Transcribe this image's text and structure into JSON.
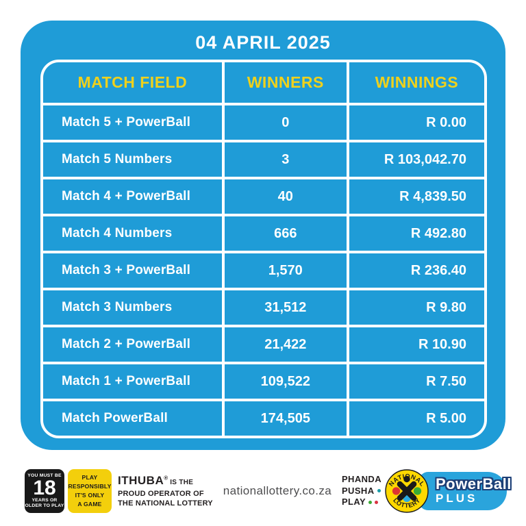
{
  "title": "04 APRIL 2025",
  "table": {
    "headers": [
      "MATCH FIELD",
      "WINNERS",
      "WINNINGS"
    ],
    "rows": [
      {
        "field": "Match 5 + PowerBall",
        "winners": "0",
        "winnings": "R 0.00"
      },
      {
        "field": "Match 5 Numbers",
        "winners": "3",
        "winnings": "R 103,042.70"
      },
      {
        "field": "Match 4 + PowerBall",
        "winners": "40",
        "winnings": "R 4,839.50"
      },
      {
        "field": "Match 4 Numbers",
        "winners": "666",
        "winnings": "R 492.80"
      },
      {
        "field": "Match 3 + PowerBall",
        "winners": "1,570",
        "winnings": "R 236.40"
      },
      {
        "field": "Match 3 Numbers",
        "winners": "31,512",
        "winnings": "R 9.80"
      },
      {
        "field": "Match 2 + PowerBall",
        "winners": "21,422",
        "winnings": "R 10.90"
      },
      {
        "field": "Match 1 + PowerBall",
        "winners": "109,522",
        "winnings": "R 7.50"
      },
      {
        "field": "Match PowerBall",
        "winners": "174,505",
        "winnings": "R 5.00"
      }
    ]
  },
  "footer": {
    "age_badge": {
      "top": "YOU MUST BE",
      "number": "18",
      "bottom": [
        "YEARS OR",
        "OLDER TO PLAY"
      ]
    },
    "responsibly_badge": [
      "PLAY",
      "RESPONSIBLY",
      "IT'S ONLY",
      "A GAME"
    ],
    "ithuba": {
      "brand": "ITHUBA",
      "reg": "®",
      "suffix": " IS THE",
      "line2": "PROUD OPERATOR OF",
      "line3": "THE NATIONAL LOTTERY"
    },
    "website": "nationallottery.co.za",
    "phanda": {
      "line1": "PHANDA",
      "line2": "PUSHA",
      "line3": "PLAY"
    },
    "lottery_logo": {
      "top": "NATIONAL",
      "bottom": "LOTTERY"
    },
    "powerball": {
      "name": "PowerBall",
      "plus": "PLUS"
    }
  },
  "colors": {
    "panel_blue": "#1F9CD7",
    "header_yellow": "#EFD11C",
    "badge_black": "#181818",
    "badge_yellow": "#F3CF0C",
    "ink_black": "#231F20",
    "url_gray": "#4D4D4F",
    "dot_teal": "#189CA9",
    "dot_green": "#3AAA35",
    "dot_red": "#D93342",
    "logo_yellow": "#FFD800",
    "logo_red": "#DD3333",
    "logo_green": "#3AAA35",
    "logo_blue": "#2BACE2",
    "pill_blue": "#2AA4DC",
    "pb_outline": "#1C3F77"
  }
}
